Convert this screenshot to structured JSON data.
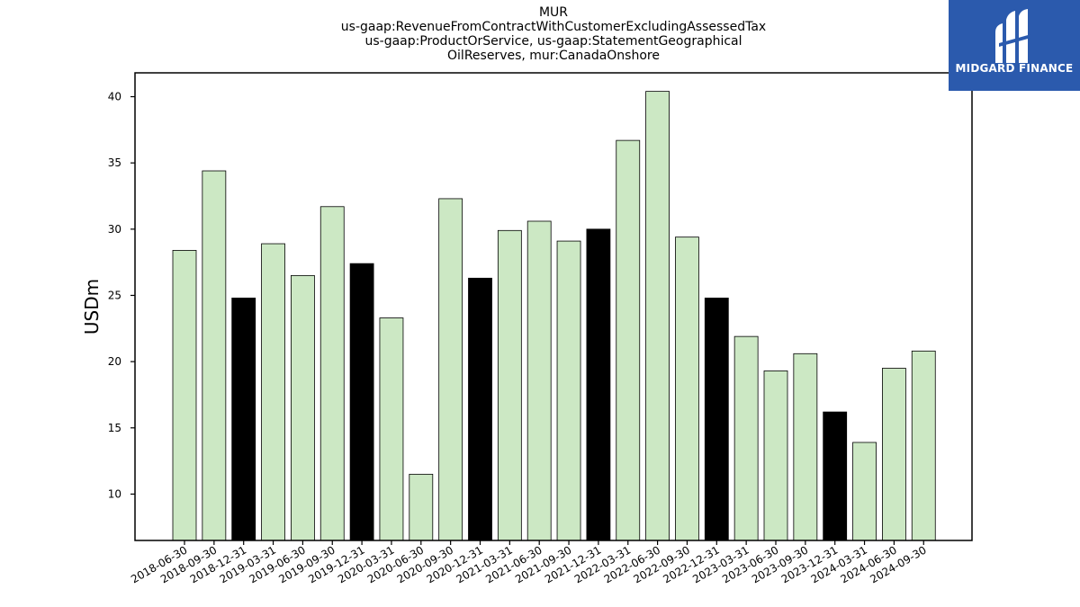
{
  "chart_data": {
    "type": "bar",
    "title_lines": [
      "MUR",
      "us-gaap:RevenueFromContractWithCustomerExcludingAssessedTax",
      "us-gaap:ProductOrService, us-gaap:StatementGeographical",
      "OilReserves, mur:CanadaOnshore"
    ],
    "xlabel": "",
    "ylabel": "USDm",
    "ylim": [
      6.5,
      41.8
    ],
    "yticks": [
      10,
      15,
      20,
      25,
      30,
      35,
      40
    ],
    "grid": false,
    "colors": {
      "normal": "#cce8c4",
      "highlight": "#000000",
      "edge": "#000000"
    },
    "categories": [
      "2018-06-30",
      "2018-09-30",
      "2018-12-31",
      "2019-03-31",
      "2019-06-30",
      "2019-09-30",
      "2019-12-31",
      "2020-03-31",
      "2020-06-30",
      "2020-09-30",
      "2020-12-31",
      "2021-03-31",
      "2021-06-30",
      "2021-09-30",
      "2021-12-31",
      "2022-03-31",
      "2022-06-30",
      "2022-09-30",
      "2022-12-31",
      "2023-03-31",
      "2023-06-30",
      "2023-09-30",
      "2023-12-31",
      "2024-03-31",
      "2024-06-30",
      "2024-09-30"
    ],
    "values": [
      28.4,
      34.4,
      24.8,
      28.9,
      26.5,
      31.7,
      27.4,
      23.3,
      11.5,
      32.3,
      26.3,
      29.9,
      30.6,
      29.1,
      30.0,
      36.7,
      40.4,
      29.4,
      24.8,
      21.9,
      19.3,
      20.6,
      16.2,
      13.9,
      19.5,
      20.8
    ],
    "highlighted": [
      false,
      false,
      true,
      false,
      false,
      false,
      true,
      false,
      false,
      false,
      true,
      false,
      false,
      false,
      true,
      false,
      false,
      false,
      true,
      false,
      false,
      false,
      true,
      false,
      false,
      false
    ]
  },
  "logo": {
    "text": "MIDGARD FINANCE",
    "background": "#2b5aad",
    "icon": "midgard-logo-icon"
  }
}
